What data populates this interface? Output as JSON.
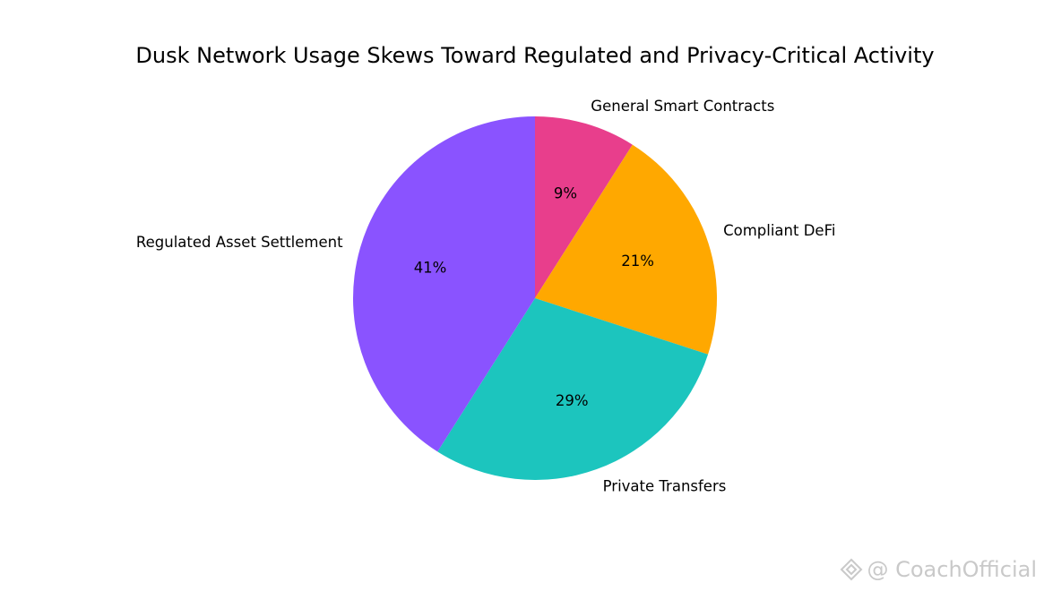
{
  "chart_data": {
    "type": "pie",
    "title": "Dusk Network Usage Skews Toward Regulated and Privacy-Critical Activity",
    "start_angle_deg": 90,
    "direction": "clockwise",
    "slices": [
      {
        "label": "General Smart Contracts",
        "value": 9,
        "pct_label": "9%",
        "color": "#E83E8C"
      },
      {
        "label": "Compliant DeFi",
        "value": 21,
        "pct_label": "21%",
        "color": "#FFA800"
      },
      {
        "label": "Private Transfers",
        "value": 29,
        "pct_label": "29%",
        "color": "#1CC5BE"
      },
      {
        "label": "Regulated Asset Settlement",
        "value": 41,
        "pct_label": "41%",
        "color": "#8A53FF"
      }
    ]
  },
  "watermark": {
    "text": "@ CoachOfficial"
  }
}
